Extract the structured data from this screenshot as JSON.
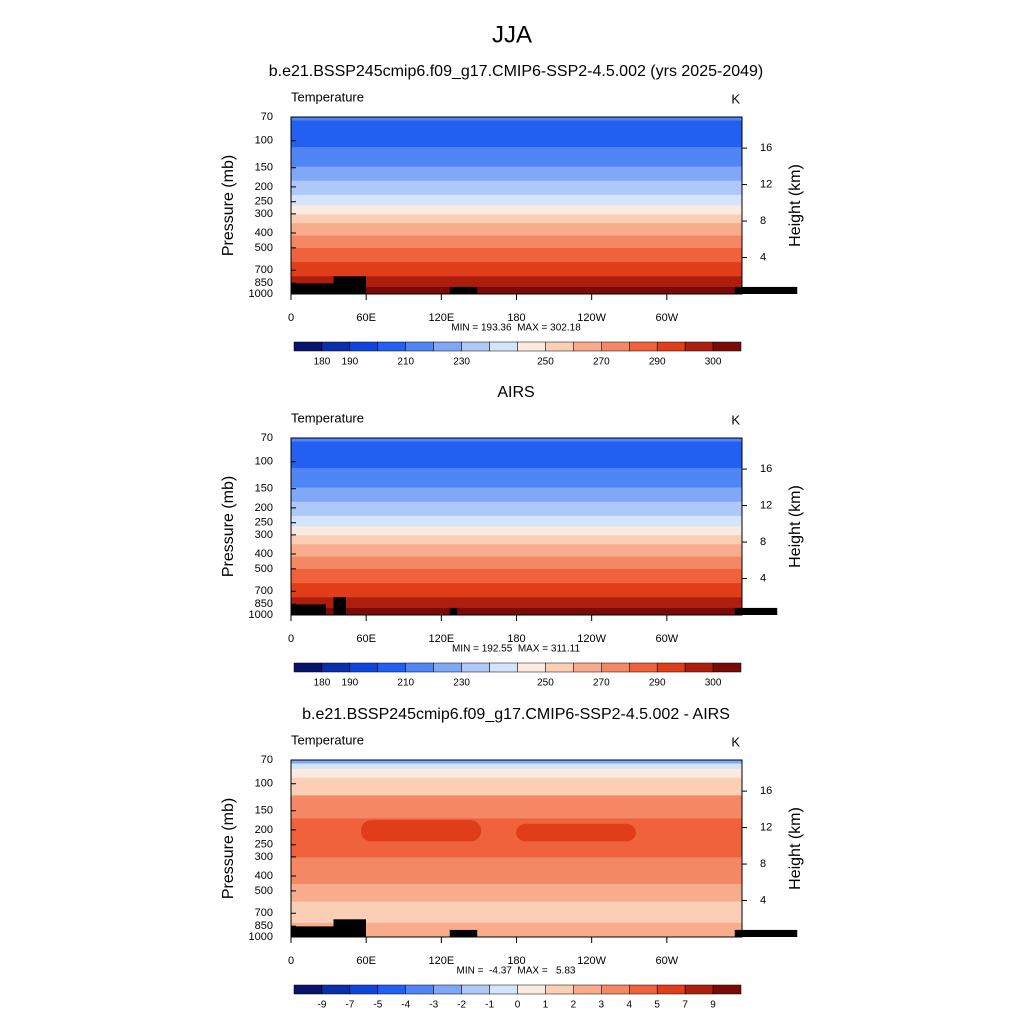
{
  "chart_data": {
    "type": "contour",
    "title": "JJA",
    "panels": [
      {
        "title": "b.e21.BSSP245cmip6.f09_g17.CMIP6-SSP2-4.5.002 (yrs 2025-2049)",
        "left_label": "Temperature",
        "right_label": "K",
        "ylabel": "Pressure (mb)",
        "y2label": "Height (km)",
        "log_y": true,
        "ylim": [
          1000,
          70
        ],
        "yticks": [
          70,
          100,
          150,
          200,
          250,
          300,
          400,
          500,
          700,
          850,
          1000
        ],
        "y2ticks": [
          4,
          8,
          12,
          16
        ],
        "xlim": [
          0,
          360
        ],
        "xticks": [
          0,
          {
            "value": 60,
            "label": "60E"
          },
          {
            "value": 120,
            "label": "120E"
          },
          180,
          {
            "value": 240,
            "label": "120W"
          },
          {
            "value": 300,
            "label": "60W"
          }
        ],
        "stats": "MIN = 193.36  MAX = 302.18",
        "colorbar": {
          "labels": [
            180,
            190,
            null,
            210,
            null,
            230,
            null,
            null,
            250,
            null,
            270,
            null,
            290,
            null,
            300
          ],
          "colors": [
            "#08136b",
            "#0b2fab",
            "#0f45db",
            "#2360f2",
            "#4f85f5",
            "#80a8f7",
            "#adc8f9",
            "#d4e4fb",
            "#fbeadf",
            "#fbcfb6",
            "#f8ac8b",
            "#f48864",
            "#f0623c",
            "#e03e1b",
            "#ae1e0e",
            "#7a0a08"
          ]
        }
      },
      {
        "title": "AIRS",
        "left_label": "Temperature",
        "right_label": "K",
        "ylabel": "Pressure (mb)",
        "y2label": "Height (km)",
        "log_y": true,
        "ylim": [
          1000,
          70
        ],
        "yticks": [
          70,
          100,
          150,
          200,
          250,
          300,
          400,
          500,
          700,
          850,
          1000
        ],
        "y2ticks": [
          4,
          8,
          12,
          16
        ],
        "xlim": [
          0,
          360
        ],
        "xticks": [
          0,
          {
            "value": 60,
            "label": "60E"
          },
          {
            "value": 120,
            "label": "120E"
          },
          180,
          {
            "value": 240,
            "label": "120W"
          },
          {
            "value": 300,
            "label": "60W"
          }
        ],
        "stats": "MIN = 192.55  MAX = 311.11",
        "colorbar": {
          "labels": [
            180,
            190,
            null,
            210,
            null,
            230,
            null,
            null,
            250,
            null,
            270,
            null,
            290,
            null,
            300
          ],
          "colors": [
            "#08136b",
            "#0b2fab",
            "#0f45db",
            "#2360f2",
            "#4f85f5",
            "#80a8f7",
            "#adc8f9",
            "#d4e4fb",
            "#fbeadf",
            "#fbcfb6",
            "#f8ac8b",
            "#f48864",
            "#f0623c",
            "#e03e1b",
            "#ae1e0e",
            "#7a0a08"
          ]
        }
      },
      {
        "title": "b.e21.BSSP245cmip6.f09_g17.CMIP6-SSP2-4.5.002 - AIRS",
        "left_label": "Temperature",
        "right_label": "K",
        "ylabel": "Pressure (mb)",
        "y2label": "Height (km)",
        "log_y": true,
        "ylim": [
          1000,
          70
        ],
        "yticks": [
          70,
          100,
          150,
          200,
          250,
          300,
          400,
          500,
          700,
          850,
          1000
        ],
        "y2ticks": [
          4,
          8,
          12,
          16
        ],
        "xlim": [
          0,
          360
        ],
        "xticks": [
          0,
          {
            "value": 60,
            "label": "60E"
          },
          {
            "value": 120,
            "label": "120E"
          },
          180,
          {
            "value": 240,
            "label": "120W"
          },
          {
            "value": 300,
            "label": "60W"
          }
        ],
        "stats": "MIN =  -4.37  MAX =   5.83",
        "colorbar": {
          "labels": [
            -9,
            -7,
            -5,
            -4,
            -3,
            -2,
            -1,
            0,
            1,
            2,
            3,
            4,
            5,
            7,
            9
          ],
          "colors": [
            "#08136b",
            "#0b2fab",
            "#0f45db",
            "#2360f2",
            "#4f85f5",
            "#80a8f7",
            "#adc8f9",
            "#d4e4fb",
            "#fbeadf",
            "#fbcfb6",
            "#f8ac8b",
            "#f48864",
            "#f0623c",
            "#e03e1b",
            "#ae1e0e",
            "#7a0a08"
          ]
        }
      }
    ]
  }
}
